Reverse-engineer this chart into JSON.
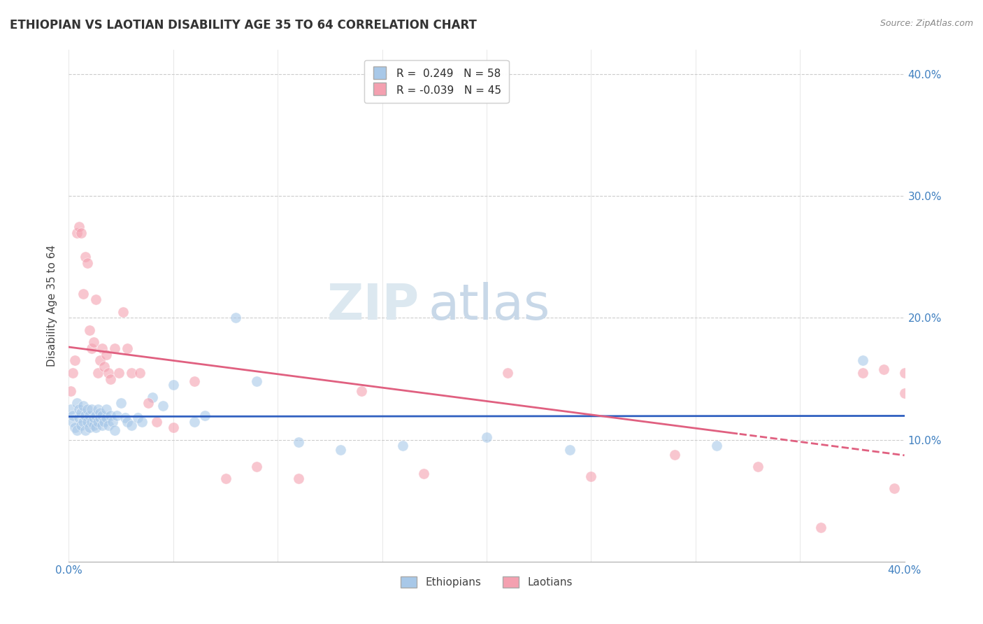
{
  "title": "ETHIOPIAN VS LAOTIAN DISABILITY AGE 35 TO 64 CORRELATION CHART",
  "source": "Source: ZipAtlas.com",
  "ylabel": "Disability Age 35 to 64",
  "xlim": [
    0.0,
    0.4
  ],
  "ylim": [
    0.0,
    0.42
  ],
  "blue_color": "#a8c8e8",
  "pink_color": "#f4a0b0",
  "blue_line_color": "#3060c0",
  "pink_line_color": "#e06080",
  "watermark_zip": "ZIP",
  "watermark_atlas": "atlas",
  "ethiopians_x": [
    0.001,
    0.002,
    0.002,
    0.003,
    0.004,
    0.004,
    0.005,
    0.005,
    0.006,
    0.006,
    0.007,
    0.007,
    0.008,
    0.008,
    0.009,
    0.009,
    0.01,
    0.01,
    0.011,
    0.011,
    0.012,
    0.012,
    0.013,
    0.013,
    0.014,
    0.014,
    0.015,
    0.015,
    0.016,
    0.016,
    0.017,
    0.018,
    0.018,
    0.019,
    0.02,
    0.021,
    0.022,
    0.023,
    0.025,
    0.027,
    0.028,
    0.03,
    0.033,
    0.035,
    0.04,
    0.045,
    0.05,
    0.06,
    0.065,
    0.08,
    0.09,
    0.11,
    0.13,
    0.16,
    0.2,
    0.24,
    0.31,
    0.38
  ],
  "ethiopians_y": [
    0.125,
    0.115,
    0.12,
    0.11,
    0.13,
    0.108,
    0.118,
    0.125,
    0.112,
    0.122,
    0.128,
    0.115,
    0.12,
    0.108,
    0.115,
    0.125,
    0.11,
    0.12,
    0.115,
    0.125,
    0.112,
    0.118,
    0.12,
    0.11,
    0.115,
    0.125,
    0.118,
    0.122,
    0.112,
    0.12,
    0.115,
    0.118,
    0.125,
    0.112,
    0.12,
    0.115,
    0.108,
    0.12,
    0.13,
    0.118,
    0.115,
    0.112,
    0.118,
    0.115,
    0.135,
    0.128,
    0.145,
    0.115,
    0.12,
    0.2,
    0.148,
    0.098,
    0.092,
    0.095,
    0.102,
    0.092,
    0.095,
    0.165
  ],
  "laotians_x": [
    0.001,
    0.002,
    0.003,
    0.004,
    0.005,
    0.006,
    0.007,
    0.008,
    0.009,
    0.01,
    0.011,
    0.012,
    0.013,
    0.014,
    0.015,
    0.016,
    0.017,
    0.018,
    0.019,
    0.02,
    0.022,
    0.024,
    0.026,
    0.028,
    0.03,
    0.034,
    0.038,
    0.042,
    0.05,
    0.06,
    0.075,
    0.09,
    0.11,
    0.14,
    0.17,
    0.21,
    0.25,
    0.29,
    0.33,
    0.36,
    0.38,
    0.39,
    0.395,
    0.4,
    0.4
  ],
  "laotians_y": [
    0.14,
    0.155,
    0.165,
    0.27,
    0.275,
    0.27,
    0.22,
    0.25,
    0.245,
    0.19,
    0.175,
    0.18,
    0.215,
    0.155,
    0.165,
    0.175,
    0.16,
    0.17,
    0.155,
    0.15,
    0.175,
    0.155,
    0.205,
    0.175,
    0.155,
    0.155,
    0.13,
    0.115,
    0.11,
    0.148,
    0.068,
    0.078,
    0.068,
    0.14,
    0.072,
    0.155,
    0.07,
    0.088,
    0.078,
    0.028,
    0.155,
    0.158,
    0.06,
    0.138,
    0.155
  ]
}
